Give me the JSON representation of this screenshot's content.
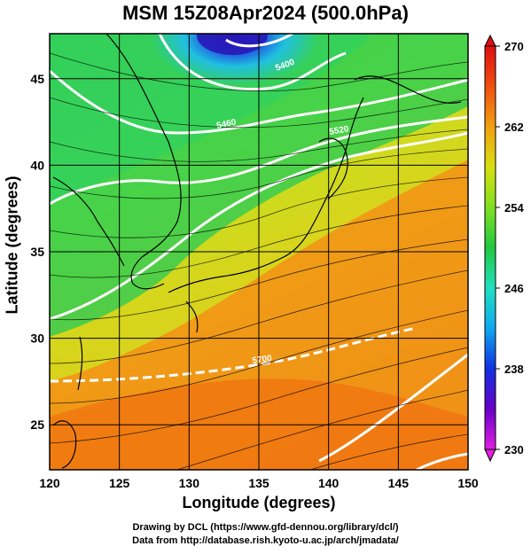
{
  "title": "MSM 15Z08Apr2024 (500.0hPa)",
  "credits": [
    "Drawing by DCL (https://www.gfd-dennou.org/library/dcl/)",
    "Data from http://database.rish.kyoto-u.ac.jp/arch/jmadata/"
  ],
  "chart_data": {
    "type": "heatmap",
    "subtype": "temperature shading with wind streamlines and height contours",
    "title": "MSM 15Z08Apr2024 (500.0hPa)",
    "xlabel": "Longitude (degrees)",
    "ylabel": "Latitude  (degrees)",
    "xlim": [
      120,
      150
    ],
    "ylim": [
      22.4,
      47.6
    ],
    "x_ticks": [
      120,
      125,
      130,
      135,
      140,
      145,
      150
    ],
    "y_ticks": [
      25,
      30,
      35,
      40,
      45
    ],
    "colorbar": {
      "min": 230,
      "max": 270,
      "ticks": [
        230,
        238,
        246,
        254,
        262,
        270
      ],
      "colors": [
        "#e020e0",
        "#6a00c8",
        "#1030e0",
        "#10a8f0",
        "#20e0c0",
        "#20c840",
        "#80e020",
        "#d8e010",
        "#f0a010",
        "#f05010",
        "#e01010"
      ]
    },
    "contour_labels": [
      "5400",
      "5460",
      "5520",
      "5700"
    ],
    "grid": true
  }
}
